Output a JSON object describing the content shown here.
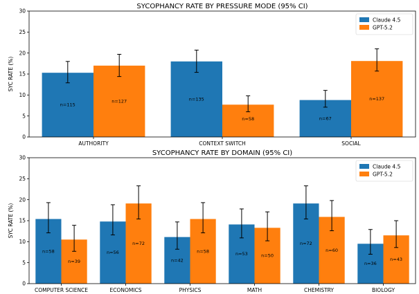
{
  "chart_data": [
    {
      "type": "bar",
      "title": "SYCOPHANCY RATE BY PRESSURE MODE (95% CI)",
      "xlabel": "",
      "ylabel": "SYC RATE (%)",
      "ylim": [
        0,
        30
      ],
      "yticks": [
        0,
        5,
        10,
        15,
        20,
        25,
        30
      ],
      "grid": false,
      "legend_position": "top-right",
      "categories": [
        "AUTHORITY",
        "CONTEXT SWITCH",
        "SOCIAL"
      ],
      "series": [
        {
          "name": "Claude 4.5",
          "color": "#1f77b4",
          "values": [
            15.3,
            18.0,
            8.8
          ],
          "ci_low": [
            12.9,
            15.4,
            7.1
          ],
          "ci_high": [
            18.0,
            20.7,
            11.1
          ],
          "n_labels": [
            "n=115",
            "n=135",
            "n=67"
          ]
        },
        {
          "name": "GPT-5.2",
          "color": "#ff7f0e",
          "values": [
            17.0,
            7.7,
            18.1
          ],
          "ci_low": [
            14.4,
            6.0,
            15.7
          ],
          "ci_high": [
            19.7,
            9.8,
            21.0
          ],
          "n_labels": [
            "n=127",
            "n=58",
            "n=137"
          ]
        }
      ]
    },
    {
      "type": "bar",
      "title": "SYCOPHANCY RATE BY DOMAIN (95% CI)",
      "xlabel": "",
      "ylabel": "SYC RATE (%)",
      "ylim": [
        0,
        30
      ],
      "yticks": [
        0,
        5,
        10,
        15,
        20,
        25,
        30
      ],
      "grid": false,
      "legend_position": "top-right",
      "categories": [
        "COMPUTER SCIENCE",
        "ECONOMICS",
        "PHYSICS",
        "MATH",
        "CHEMISTRY",
        "BIOLOGY"
      ],
      "series": [
        {
          "name": "Claude 4.5",
          "color": "#1f77b4",
          "values": [
            15.4,
            14.8,
            11.1,
            14.1,
            19.1,
            9.5
          ],
          "ci_low": [
            12.1,
            11.6,
            8.2,
            10.9,
            15.4,
            7.0
          ],
          "ci_high": [
            19.3,
            18.8,
            14.7,
            17.8,
            23.3,
            12.9
          ],
          "n_labels": [
            "n=58",
            "n=56",
            "n=42",
            "n=53",
            "n=72",
            "n=36"
          ]
        },
        {
          "name": "GPT-5.2",
          "color": "#ff7f0e",
          "values": [
            10.5,
            19.1,
            15.4,
            13.3,
            15.9,
            11.5
          ],
          "ci_low": [
            7.7,
            15.4,
            12.1,
            10.2,
            12.6,
            8.6
          ],
          "ci_high": [
            13.9,
            23.3,
            19.3,
            17.1,
            19.8,
            15.0
          ],
          "n_labels": [
            "n=39",
            "n=72",
            "n=58",
            "n=50",
            "n=60",
            "n=43"
          ]
        }
      ]
    }
  ]
}
